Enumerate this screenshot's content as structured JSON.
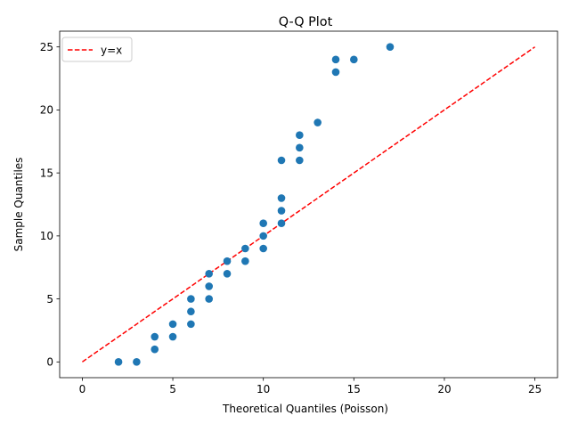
{
  "chart_data": {
    "type": "scatter",
    "title": "Q-Q Plot",
    "xlabel": "Theoretical Quantiles (Poisson)",
    "ylabel": "Sample Quantiles",
    "xlim": [
      -1.25,
      26.25
    ],
    "ylim": [
      -1.25,
      26.25
    ],
    "xticks": [
      0,
      5,
      10,
      15,
      20,
      25
    ],
    "yticks": [
      0,
      5,
      10,
      15,
      20,
      25
    ],
    "xtick_labels": [
      "0",
      "5",
      "10",
      "15",
      "20",
      "25"
    ],
    "ytick_labels": [
      "0",
      "5",
      "10",
      "15",
      "20",
      "25"
    ],
    "grid": false,
    "legend_position": "top-left",
    "series": [
      {
        "marker_color": "#1f77b4",
        "points": [
          [
            2,
            0
          ],
          [
            3,
            0
          ],
          [
            4,
            1
          ],
          [
            4,
            2
          ],
          [
            5,
            2
          ],
          [
            5,
            3
          ],
          [
            6,
            3
          ],
          [
            6,
            4
          ],
          [
            6,
            5
          ],
          [
            7,
            5
          ],
          [
            7,
            6
          ],
          [
            7,
            7
          ],
          [
            8,
            7
          ],
          [
            8,
            8
          ],
          [
            9,
            8
          ],
          [
            9,
            9
          ],
          [
            10,
            9
          ],
          [
            10,
            10
          ],
          [
            10,
            11
          ],
          [
            11,
            11
          ],
          [
            11,
            12
          ],
          [
            11,
            13
          ],
          [
            11,
            16
          ],
          [
            12,
            16
          ],
          [
            12,
            17
          ],
          [
            12,
            18
          ],
          [
            13,
            19
          ],
          [
            14,
            23
          ],
          [
            14,
            24
          ],
          [
            15,
            24
          ],
          [
            17,
            25
          ]
        ]
      }
    ],
    "reference_line": {
      "name": "y=x",
      "color": "#ff0000",
      "style": "dashed",
      "points": [
        [
          0,
          0
        ],
        [
          25,
          25
        ]
      ]
    }
  }
}
